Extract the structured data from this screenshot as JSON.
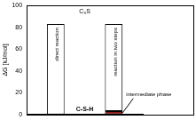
{
  "chart_data": {
    "type": "bar",
    "categories": [
      "direct reaction",
      "reaction in two steps"
    ],
    "series": [
      {
        "color": "#8b1a1a",
        "values": [
          null,
          3
        ]
      },
      {
        "color": "#ffffff",
        "values": [
          83,
          80
        ]
      }
    ],
    "stacked": true,
    "ylabel": "ΔG [kJ/mol]",
    "ylim": [
      0,
      100
    ],
    "yticks": [
      0,
      20,
      40,
      60,
      80,
      100
    ],
    "grid": false,
    "tick_labels": "y",
    "annotations": [
      "C₃S",
      "C-S-H",
      "intermediate phase"
    ]
  }
}
